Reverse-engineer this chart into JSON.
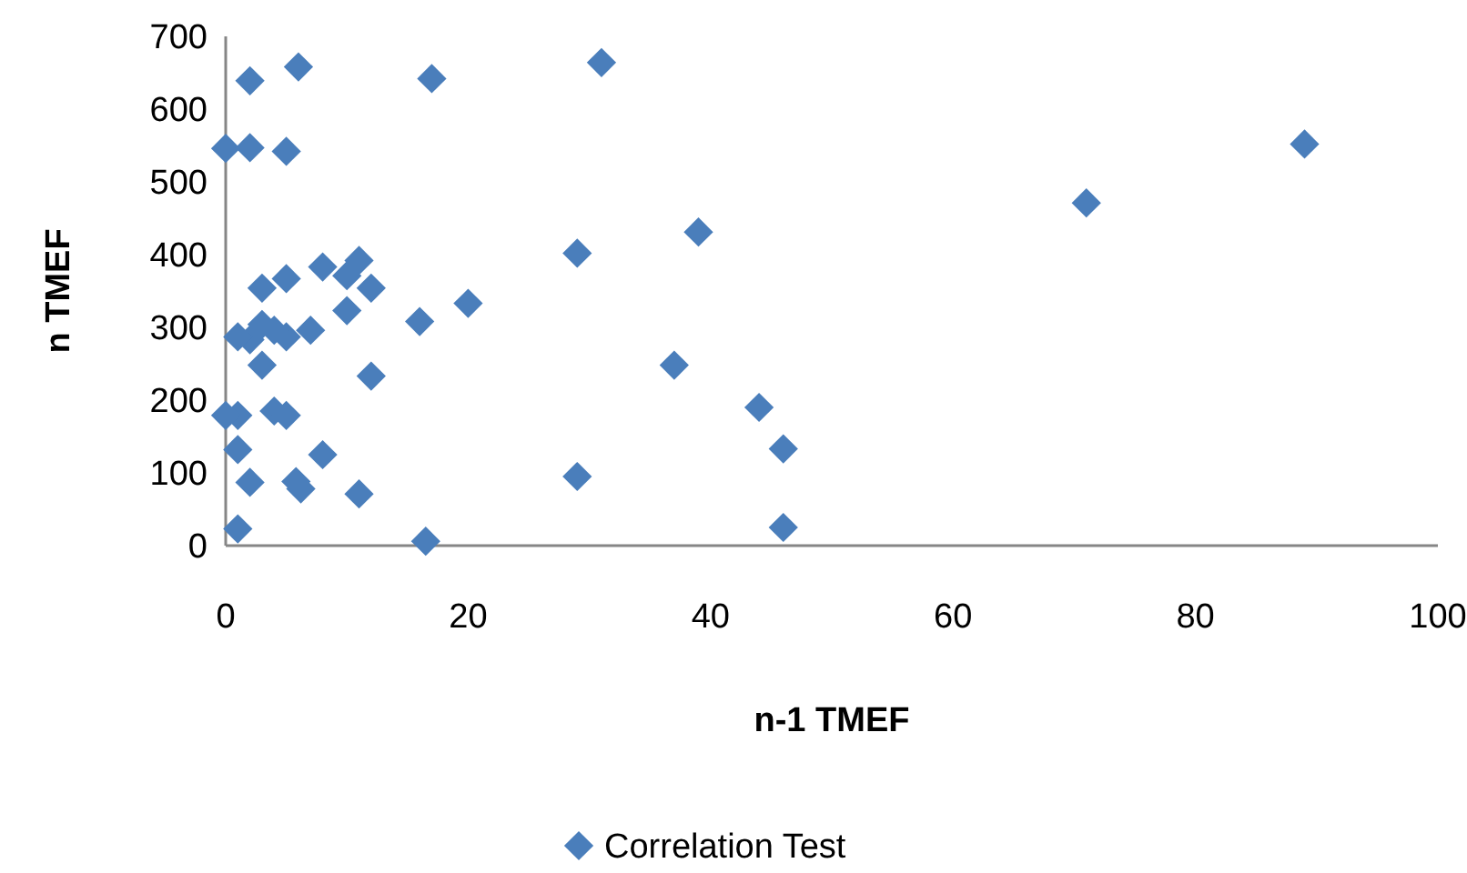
{
  "chart_data": {
    "type": "scatter",
    "xlabel": "n-1 TMEF",
    "ylabel": "n TMEF",
    "xlim": [
      0,
      100
    ],
    "xticks": [
      0,
      20,
      40,
      60,
      80,
      100
    ],
    "ylim": [
      0,
      700
    ],
    "yticks": [
      0,
      100,
      200,
      300,
      400,
      500,
      600,
      700
    ],
    "marker": "diamond",
    "legend": "bottom",
    "grid": false,
    "series": [
      {
        "name": "Correlation Test",
        "color": "#4a7ebb",
        "x": [
          0,
          2,
          5,
          2,
          6,
          17,
          31,
          89,
          71,
          39,
          29,
          20,
          16,
          12,
          11,
          10,
          8,
          5,
          3,
          10,
          7,
          5,
          4,
          3,
          2,
          1,
          3,
          12,
          37,
          44,
          46,
          4,
          5,
          1,
          0,
          1,
          8,
          2,
          5.8,
          6.2,
          11,
          29,
          1,
          16.5,
          46
        ],
        "values": [
          546,
          639,
          542,
          547,
          658,
          642,
          664,
          552,
          471,
          431,
          402,
          333,
          308,
          354,
          392,
          371,
          383,
          367,
          354,
          323,
          296,
          287,
          296,
          304,
          283,
          287,
          248,
          233,
          248,
          190,
          133,
          185,
          179,
          179,
          179,
          132,
          125,
          87,
          88,
          78,
          71,
          95,
          23,
          6,
          25
        ]
      }
    ]
  }
}
